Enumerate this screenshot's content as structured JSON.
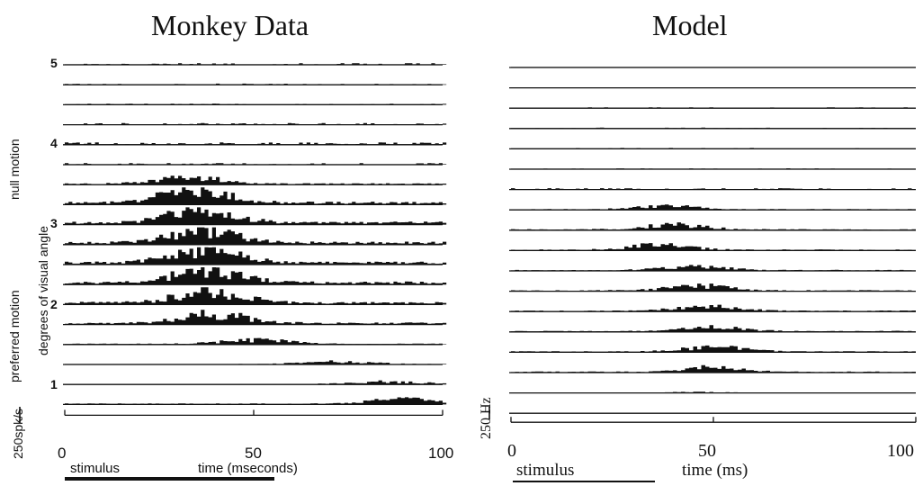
{
  "chart_data": [
    {
      "type": "bar",
      "title": "Monkey Data",
      "xlabel": "time (mseconds)",
      "xlim": [
        0,
        100
      ],
      "xticks": [
        "0",
        "50",
        "100"
      ],
      "row_labels": [
        "5",
        "4",
        "3",
        "2",
        "1"
      ],
      "side_labels": {
        "scale": "250spk/s",
        "y": "degrees of visual angle",
        "null": "null motion",
        "preferred": "preferred motion"
      },
      "stimulus_label": "stimulus",
      "rows": 18,
      "peak_time": [
        null,
        null,
        null,
        null,
        null,
        null,
        33,
        34,
        36,
        36,
        37,
        37,
        38,
        39,
        50,
        72,
        85,
        90
      ],
      "peak_amplitude_hz": [
        15,
        10,
        10,
        15,
        20,
        15,
        60,
        125,
        125,
        125,
        125,
        125,
        110,
        90,
        40,
        25,
        25,
        45
      ]
    },
    {
      "type": "bar",
      "title": "Model",
      "xlabel": "time (ms)",
      "xlim": [
        0,
        100
      ],
      "xticks": [
        "0",
        "50",
        "100"
      ],
      "side_labels": {
        "scale": "250 Hz"
      },
      "stimulus_label": "stimulus",
      "rows": 18,
      "peak_time": [
        null,
        null,
        null,
        null,
        null,
        null,
        null,
        38,
        40,
        36,
        45,
        46,
        48,
        50,
        50,
        50,
        45,
        null
      ],
      "peak_amplitude_hz": [
        5,
        5,
        10,
        10,
        10,
        10,
        15,
        45,
        60,
        60,
        55,
        60,
        60,
        60,
        60,
        60,
        10,
        5
      ]
    }
  ]
}
